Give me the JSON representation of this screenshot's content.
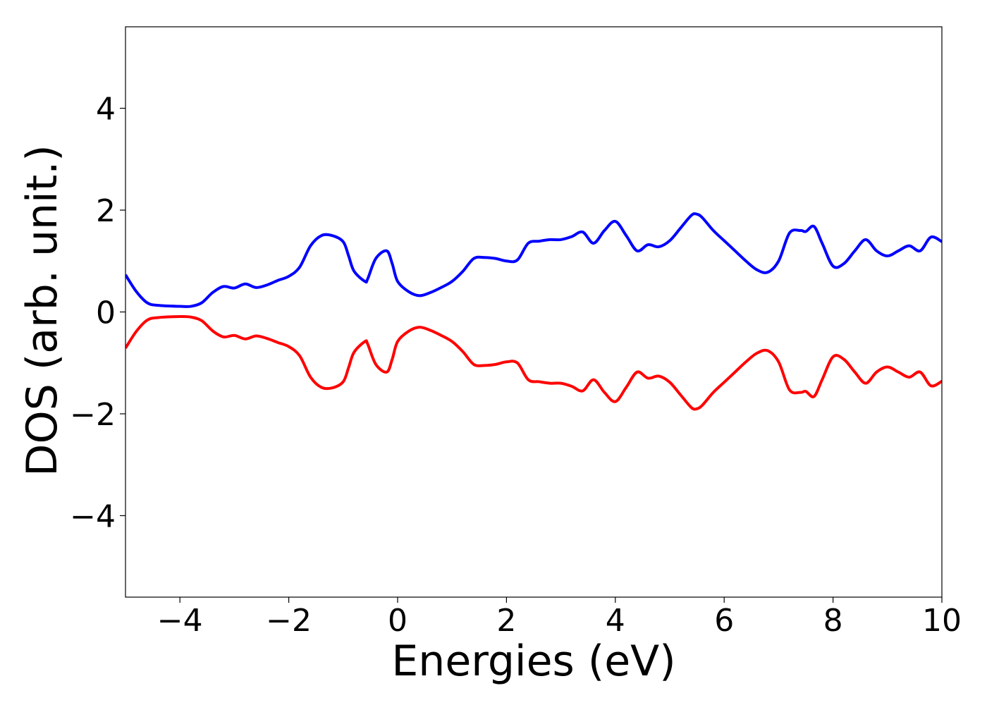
{
  "chart_data": {
    "type": "line",
    "title": "",
    "xlabel": "Energies (eV)",
    "ylabel": "DOS (arb. unit.)",
    "xlim": [
      -5,
      10
    ],
    "ylim": [
      -5.6,
      5.6
    ],
    "xticks": [
      -4,
      -2,
      0,
      2,
      4,
      6,
      8,
      10
    ],
    "yticks": [
      -4,
      -2,
      0,
      2,
      4
    ],
    "xtick_labels": [
      "−4",
      "−2",
      "0",
      "2",
      "4",
      "6",
      "8",
      "10"
    ],
    "ytick_labels": [
      "−4",
      "−2",
      "0",
      "2",
      "4"
    ],
    "grid": false,
    "legend": "none",
    "series": [
      {
        "color": "#0000ff",
        "x": [
          -5.0,
          -4.8,
          -4.6,
          -4.4,
          -4.0,
          -3.8,
          -3.6,
          -3.4,
          -3.2,
          -3.0,
          -2.8,
          -2.6,
          -2.4,
          -2.2,
          -2.0,
          -1.8,
          -1.6,
          -1.4,
          -1.2,
          -1.0,
          -0.9,
          -0.8,
          -0.6,
          -0.55,
          -0.4,
          -0.2,
          -0.1,
          0.0,
          0.2,
          0.4,
          0.6,
          0.8,
          1.0,
          1.2,
          1.4,
          1.6,
          1.8,
          2.0,
          2.2,
          2.4,
          2.6,
          2.8,
          3.0,
          3.2,
          3.4,
          3.6,
          3.8,
          4.0,
          4.2,
          4.4,
          4.6,
          4.8,
          5.0,
          5.2,
          5.4,
          5.5,
          5.6,
          5.8,
          6.0,
          6.2,
          6.4,
          6.6,
          6.8,
          7.0,
          7.2,
          7.4,
          7.5,
          7.65,
          7.8,
          8.0,
          8.2,
          8.4,
          8.6,
          8.8,
          9.0,
          9.2,
          9.4,
          9.6,
          9.8,
          10.0
        ],
        "y": [
          0.73,
          0.4,
          0.18,
          0.13,
          0.11,
          0.11,
          0.18,
          0.38,
          0.5,
          0.47,
          0.55,
          0.48,
          0.53,
          0.62,
          0.7,
          0.88,
          1.3,
          1.5,
          1.5,
          1.38,
          1.1,
          0.8,
          0.6,
          0.65,
          1.05,
          1.2,
          0.95,
          0.6,
          0.4,
          0.32,
          0.38,
          0.48,
          0.6,
          0.8,
          1.05,
          1.07,
          1.05,
          1.0,
          1.02,
          1.35,
          1.39,
          1.42,
          1.42,
          1.48,
          1.57,
          1.35,
          1.6,
          1.78,
          1.5,
          1.2,
          1.32,
          1.28,
          1.4,
          1.65,
          1.9,
          1.92,
          1.85,
          1.6,
          1.4,
          1.2,
          1.0,
          0.83,
          0.78,
          1.0,
          1.55,
          1.6,
          1.58,
          1.68,
          1.35,
          0.9,
          0.95,
          1.2,
          1.42,
          1.2,
          1.1,
          1.2,
          1.3,
          1.2,
          1.47,
          1.38
        ]
      },
      {
        "color": "#ff0000",
        "x": [
          -5.0,
          -4.8,
          -4.6,
          -4.4,
          -4.0,
          -3.8,
          -3.6,
          -3.4,
          -3.2,
          -3.0,
          -2.8,
          -2.6,
          -2.4,
          -2.2,
          -2.0,
          -1.8,
          -1.6,
          -1.4,
          -1.2,
          -1.0,
          -0.9,
          -0.8,
          -0.6,
          -0.55,
          -0.4,
          -0.2,
          -0.1,
          0.0,
          0.2,
          0.4,
          0.6,
          0.8,
          1.0,
          1.2,
          1.4,
          1.6,
          1.8,
          2.0,
          2.2,
          2.4,
          2.6,
          2.8,
          3.0,
          3.2,
          3.4,
          3.6,
          3.8,
          4.0,
          4.2,
          4.4,
          4.6,
          4.8,
          5.0,
          5.2,
          5.4,
          5.5,
          5.6,
          5.8,
          6.0,
          6.2,
          6.4,
          6.6,
          6.8,
          7.0,
          7.2,
          7.4,
          7.5,
          7.65,
          7.8,
          8.0,
          8.2,
          8.4,
          8.6,
          8.8,
          9.0,
          9.2,
          9.4,
          9.6,
          9.8,
          10.0
        ],
        "y": [
          -0.71,
          -0.38,
          -0.16,
          -0.11,
          -0.09,
          -0.1,
          -0.17,
          -0.37,
          -0.49,
          -0.46,
          -0.53,
          -0.47,
          -0.52,
          -0.6,
          -0.68,
          -0.86,
          -1.28,
          -1.48,
          -1.49,
          -1.37,
          -1.09,
          -0.79,
          -0.58,
          -0.63,
          -1.03,
          -1.18,
          -0.93,
          -0.58,
          -0.38,
          -0.3,
          -0.36,
          -0.46,
          -0.58,
          -0.78,
          -1.03,
          -1.05,
          -1.03,
          -0.98,
          -1.0,
          -1.33,
          -1.37,
          -1.4,
          -1.4,
          -1.46,
          -1.55,
          -1.33,
          -1.58,
          -1.76,
          -1.48,
          -1.18,
          -1.3,
          -1.26,
          -1.38,
          -1.63,
          -1.88,
          -1.9,
          -1.83,
          -1.58,
          -1.38,
          -1.18,
          -0.98,
          -0.81,
          -0.76,
          -0.98,
          -1.53,
          -1.58,
          -1.56,
          -1.66,
          -1.33,
          -0.88,
          -0.93,
          -1.18,
          -1.4,
          -1.18,
          -1.08,
          -1.18,
          -1.28,
          -1.18,
          -1.45,
          -1.36
        ]
      }
    ]
  }
}
